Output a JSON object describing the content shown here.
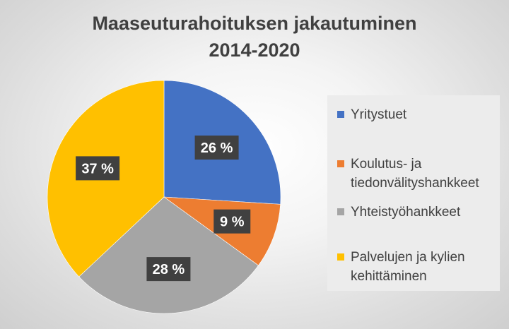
{
  "chart_data": {
    "type": "pie",
    "title": [
      "Maaseuturahoituksen jakautuminen",
      "2014-2020"
    ],
    "categories": [
      "Yritystuet",
      "Koulutus- ja tiedonvälityshankkeet",
      "Yhteistyöhankkeet",
      "Palvelujen ja kylien kehittäminen"
    ],
    "legend_lines": [
      [
        "Yritystuet"
      ],
      [
        "Koulutus- ja",
        "tiedonvälityshankkeet"
      ],
      [
        "Yhteistyöhankkeet"
      ],
      [
        "Palvelujen ja kylien",
        "kehittäminen"
      ]
    ],
    "values": [
      26,
      9,
      28,
      37
    ],
    "data_labels": [
      "26 %",
      "9 %",
      "28 %",
      "37 %"
    ],
    "colors": [
      "#4472C4",
      "#ED7D31",
      "#A5A5A5",
      "#FFC000"
    ],
    "legend_position": "right",
    "start_angle_deg": 0,
    "direction": "clockwise"
  }
}
